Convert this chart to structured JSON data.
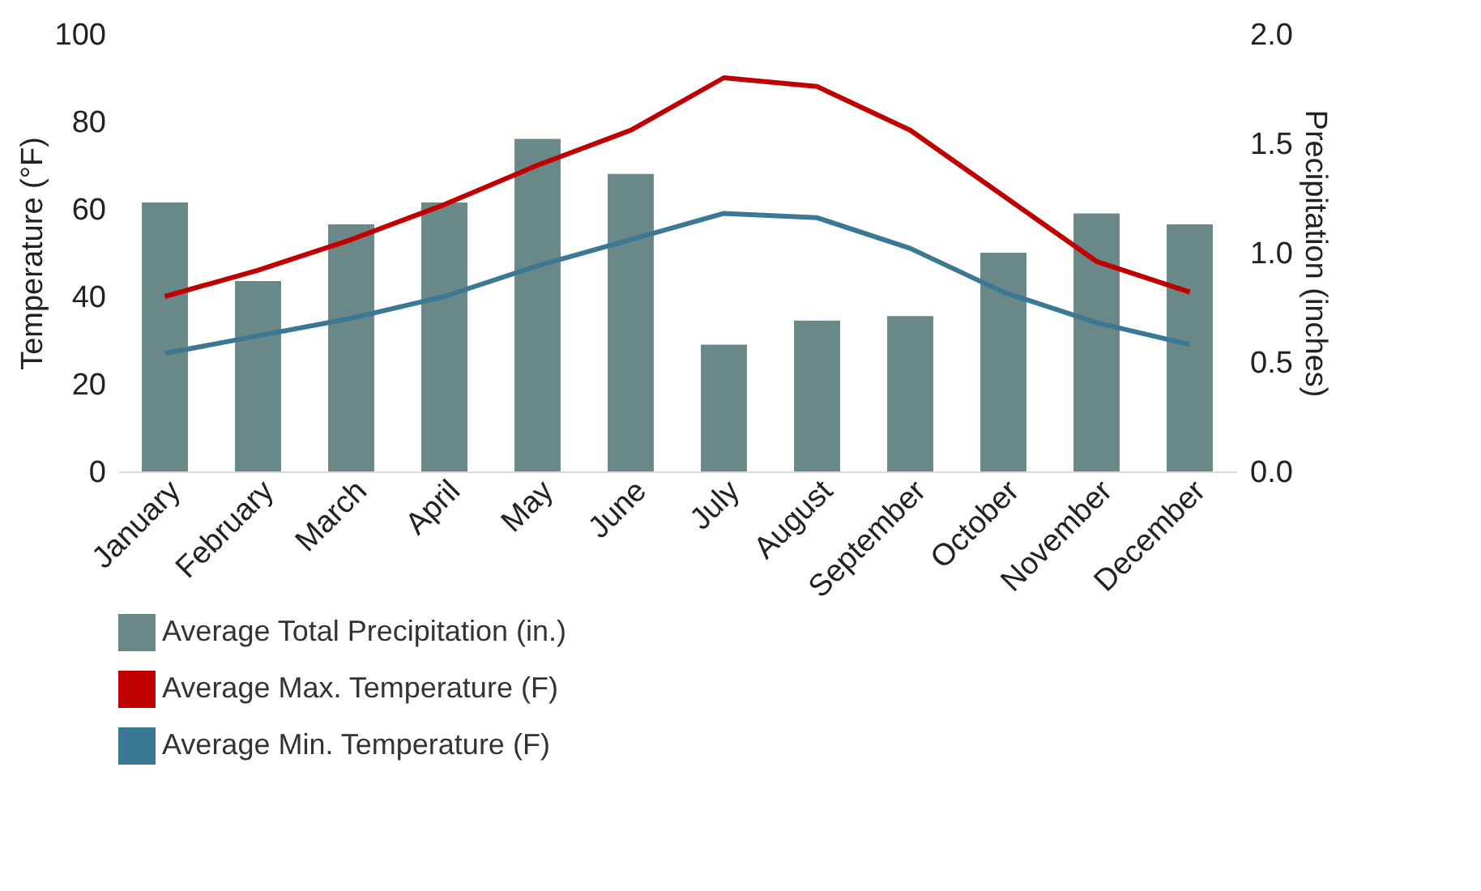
{
  "chart_data": {
    "type": "bar",
    "ylabel": "Temperature (°F)",
    "y2label": "Precipitation (inches)",
    "categories": [
      "January",
      "February",
      "March",
      "April",
      "May",
      "June",
      "July",
      "August",
      "September",
      "October",
      "November",
      "December"
    ],
    "series": [
      {
        "name": "Average Total Precipitation (in.)",
        "axis": "y2",
        "color": "#6b8888",
        "values": [
          1.23,
          0.87,
          1.13,
          1.23,
          1.52,
          1.36,
          0.58,
          0.69,
          0.71,
          1.0,
          1.18,
          1.13
        ]
      },
      {
        "name": "Average Max. Temperature (F)",
        "type": "line",
        "color": "#c00000",
        "values": [
          40,
          46,
          53,
          61,
          70,
          78,
          90,
          88,
          78,
          63,
          48,
          41
        ]
      },
      {
        "name": "Average Min. Temperature (F)",
        "type": "line",
        "color": "#3a7894",
        "values": [
          27,
          31,
          35,
          40,
          47,
          53,
          59,
          58,
          51,
          41,
          34,
          29
        ]
      }
    ],
    "ylim": [
      0,
      100
    ],
    "yticks": [
      0,
      20,
      40,
      60,
      80,
      100
    ],
    "y2lim": [
      0,
      2
    ],
    "y2ticks": [
      {
        "value": 0,
        "label": "0.0"
      },
      {
        "value": 0.5,
        "label": "0.5"
      },
      {
        "value": 1,
        "label": "1.0"
      },
      {
        "value": 1.5,
        "label": "1.5"
      },
      {
        "value": 2,
        "label": "2.0"
      }
    ],
    "grid": false,
    "legend": "bottom"
  }
}
